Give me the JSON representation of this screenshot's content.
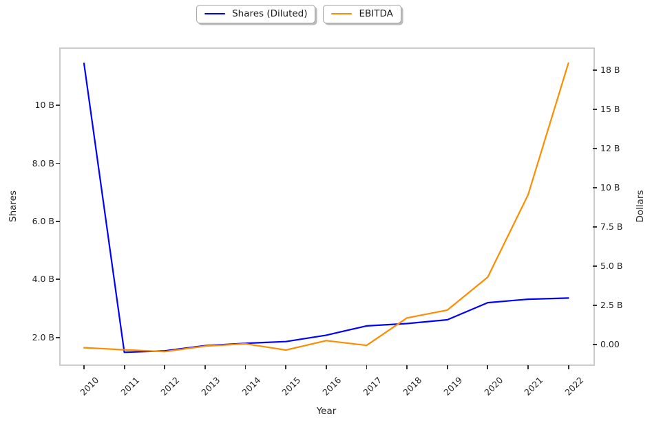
{
  "figure": {
    "background": "#ffffff",
    "legend": [
      {
        "label": "Shares (Diluted)",
        "color": "#0000ff"
      },
      {
        "label": "EBITDA",
        "color": "#ff8c00"
      }
    ]
  },
  "chart_data": {
    "type": "line",
    "title": "",
    "xlabel": "Year",
    "grid": false,
    "legend_position": "upper center",
    "x": [
      2010,
      2011,
      2012,
      2013,
      2014,
      2015,
      2016,
      2017,
      2018,
      2019,
      2020,
      2021,
      2022
    ],
    "x_tick_labels": [
      "2010",
      "2011",
      "2012",
      "2013",
      "2014",
      "2015",
      "2016",
      "2017",
      "2018",
      "2019",
      "2020",
      "2021",
      "2022"
    ],
    "xlim": [
      2009.42,
      2022.62
    ],
    "axes": {
      "left": {
        "label": "Shares",
        "units": "billions of shares",
        "ylim": [
          1.07,
          11.95
        ],
        "ticks": [
          {
            "value": 2,
            "label": "2.0 B"
          },
          {
            "value": 4,
            "label": "4.0 B"
          },
          {
            "value": 6,
            "label": "6.0 B"
          },
          {
            "value": 8,
            "label": "8.0 B"
          },
          {
            "value": 10,
            "label": "10 B"
          }
        ]
      },
      "right": {
        "label": "Dollars",
        "units": "billions of dollars",
        "ylim": [
          -1.27,
          18.86
        ],
        "ticks": [
          {
            "value": 0,
            "label": "0.00"
          },
          {
            "value": 2.5,
            "label": "2.5 B"
          },
          {
            "value": 5,
            "label": "5.0 B"
          },
          {
            "value": 7.5,
            "label": "7.5 B"
          },
          {
            "value": 10,
            "label": "10 B"
          },
          {
            "value": 12.5,
            "label": "12 B"
          },
          {
            "value": 15,
            "label": "15 B"
          },
          {
            "value": 17.5,
            "label": "18 B"
          }
        ]
      }
    },
    "series": [
      {
        "name": "Shares (Diluted)",
        "axis": "left",
        "color": "#0000ff",
        "values": [
          11.45,
          1.49,
          1.54,
          1.72,
          1.8,
          1.86,
          2.08,
          2.4,
          2.48,
          2.61,
          3.2,
          3.32,
          3.36
        ]
      },
      {
        "name": "EBITDA",
        "axis": "right",
        "color": "#ff8c00",
        "values": [
          -0.2,
          -0.33,
          -0.45,
          -0.1,
          0.05,
          -0.35,
          0.25,
          -0.05,
          1.7,
          2.2,
          4.3,
          9.55,
          17.95
        ]
      }
    ]
  }
}
